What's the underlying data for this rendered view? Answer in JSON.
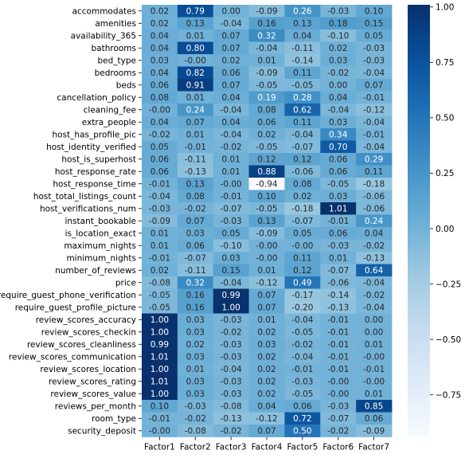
{
  "chart_data": {
    "type": "heatmap",
    "title": "",
    "xlabel": "",
    "ylabel": "",
    "colormap": "Blues",
    "vmin": -0.94,
    "vmax": 1.01,
    "columns": [
      "Factor1",
      "Factor2",
      "Factor3",
      "Factor4",
      "Factor5",
      "Factor6",
      "Factor7"
    ],
    "rows": [
      "accommodates",
      "amenities",
      "availability_365",
      "bathrooms",
      "bed_type",
      "bedrooms",
      "beds",
      "cancellation_policy",
      "cleaning_fee",
      "extra_people",
      "host_has_profile_pic",
      "host_identity_verified",
      "host_is_superhost",
      "host_response_rate",
      "host_response_time",
      "host_total_listings_count",
      "host_verifications_num",
      "instant_bookable",
      "is_location_exact",
      "maximum_nights",
      "minimum_nights",
      "number_of_reviews",
      "price",
      "require_guest_phone_verification",
      "require_guest_profile_picture",
      "review_scores_accuracy",
      "review_scores_checkin",
      "review_scores_cleanliness",
      "review_scores_communication",
      "review_scores_location",
      "review_scores_rating",
      "review_scores_value",
      "reviews_per_month",
      "room_type",
      "security_deposit"
    ],
    "values": [
      [
        0.02,
        0.79,
        0.0,
        -0.09,
        0.26,
        -0.03,
        0.1
      ],
      [
        0.02,
        0.13,
        -0.04,
        0.16,
        0.13,
        0.18,
        0.15
      ],
      [
        0.04,
        0.01,
        0.07,
        0.32,
        0.04,
        -0.1,
        0.05
      ],
      [
        0.04,
        0.8,
        0.07,
        -0.04,
        -0.11,
        0.02,
        -0.03
      ],
      [
        0.03,
        -0.0,
        0.02,
        0.01,
        -0.14,
        0.03,
        -0.03
      ],
      [
        0.04,
        0.82,
        0.06,
        -0.09,
        0.11,
        -0.02,
        -0.04
      ],
      [
        0.06,
        0.91,
        0.07,
        -0.05,
        -0.05,
        0.0,
        0.07
      ],
      [
        0.08,
        0.01,
        0.04,
        0.19,
        0.28,
        0.04,
        -0.01
      ],
      [
        -0.0,
        0.24,
        -0.04,
        0.08,
        0.62,
        -0.04,
        -0.12
      ],
      [
        0.04,
        0.07,
        0.04,
        0.06,
        0.11,
        0.03,
        -0.04
      ],
      [
        -0.02,
        0.01,
        -0.04,
        0.02,
        -0.04,
        0.34,
        -0.01
      ],
      [
        0.05,
        -0.01,
        -0.02,
        -0.05,
        -0.07,
        0.7,
        -0.04
      ],
      [
        0.06,
        -0.11,
        0.01,
        0.12,
        0.12,
        0.06,
        0.29
      ],
      [
        0.06,
        -0.13,
        0.01,
        0.88,
        -0.06,
        0.06,
        0.11
      ],
      [
        -0.01,
        0.13,
        -0.0,
        -0.94,
        0.08,
        -0.05,
        -0.18
      ],
      [
        -0.04,
        0.08,
        -0.01,
        0.1,
        0.02,
        0.03,
        -0.06
      ],
      [
        -0.03,
        -0.02,
        -0.07,
        -0.05,
        -0.18,
        1.01,
        -0.06
      ],
      [
        -0.09,
        0.07,
        -0.03,
        0.13,
        -0.07,
        -0.01,
        0.24
      ],
      [
        0.01,
        0.03,
        0.05,
        -0.09,
        0.05,
        0.06,
        0.04
      ],
      [
        0.01,
        0.06,
        -0.1,
        -0.0,
        -0.0,
        -0.03,
        -0.02
      ],
      [
        -0.01,
        -0.07,
        0.03,
        -0.0,
        0.11,
        0.01,
        -0.13
      ],
      [
        0.02,
        -0.11,
        0.15,
        0.01,
        0.12,
        -0.07,
        0.64
      ],
      [
        -0.08,
        0.32,
        -0.04,
        -0.12,
        0.49,
        -0.06,
        -0.04
      ],
      [
        -0.05,
        0.16,
        0.99,
        0.07,
        -0.17,
        -0.14,
        -0.02
      ],
      [
        -0.05,
        0.16,
        1.0,
        0.07,
        -0.2,
        -0.13,
        -0.04
      ],
      [
        1.0,
        0.03,
        -0.03,
        0.01,
        -0.04,
        -0.01,
        0.0
      ],
      [
        1.0,
        0.03,
        -0.02,
        0.02,
        -0.05,
        -0.01,
        0.0
      ],
      [
        0.99,
        0.02,
        -0.03,
        0.03,
        -0.02,
        -0.01,
        0.01
      ],
      [
        1.01,
        0.03,
        -0.03,
        0.02,
        -0.04,
        -0.01,
        -0.0
      ],
      [
        1.0,
        0.01,
        -0.04,
        0.02,
        -0.01,
        -0.01,
        -0.01
      ],
      [
        1.01,
        0.03,
        -0.03,
        0.02,
        -0.03,
        -0.0,
        -0.0
      ],
      [
        1.0,
        0.03,
        -0.03,
        0.02,
        -0.05,
        -0.0,
        0.01
      ],
      [
        0.1,
        -0.03,
        -0.08,
        0.04,
        0.06,
        -0.03,
        0.85
      ],
      [
        -0.01,
        -0.02,
        -0.13,
        -0.12,
        0.72,
        -0.07,
        0.06
      ],
      [
        -0.0,
        -0.08,
        -0.02,
        0.07,
        0.5,
        -0.02,
        -0.09
      ]
    ],
    "colorbar": {
      "ticks": [
        1.0,
        0.75,
        0.5,
        0.25,
        0.0,
        -0.25,
        -0.5,
        -0.75
      ],
      "tick_labels": [
        "1.00",
        "0.75",
        "0.50",
        "0.25",
        "0.00",
        "−0.25",
        "−0.50",
        "−0.75"
      ]
    }
  }
}
